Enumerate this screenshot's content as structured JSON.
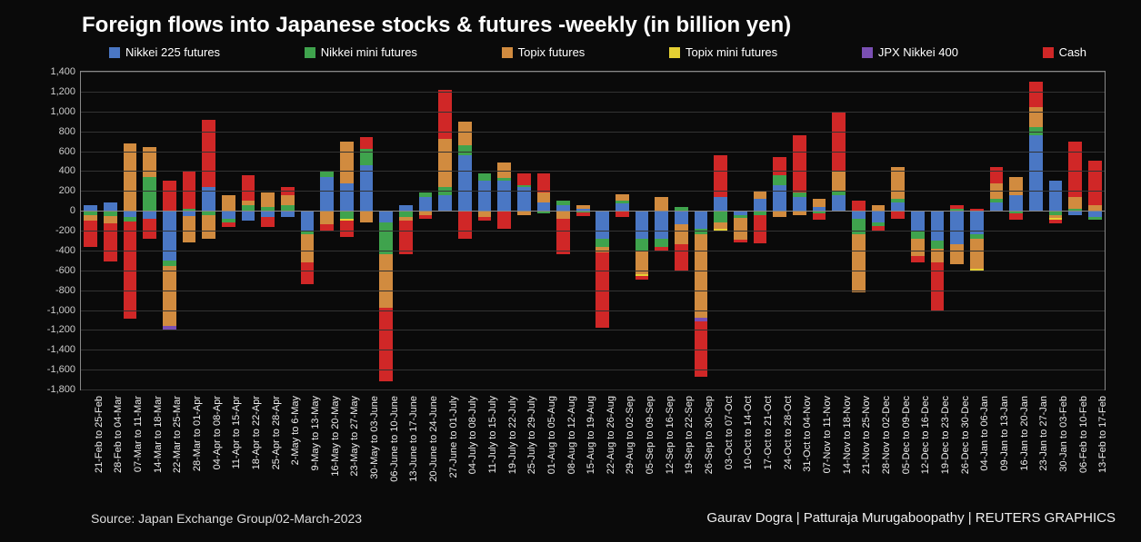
{
  "title": "Foreign flows into Japanese stocks & futures -weekly (in billion yen)",
  "source": "Source: Japan Exchange Group/02-March-2023",
  "credit": "Gaurav Dogra | Patturaja Murugaboopathy | REUTERS GRAPHICS",
  "chart": {
    "type": "stacked-bar",
    "background": "#0a0a0a",
    "border_color": "#888888",
    "grid_color": "#333333",
    "text_color": "#eeeeee",
    "ylim": [
      -1800,
      1400
    ],
    "ytick_step": 200,
    "bar_width_ratio": 0.68,
    "legend": [
      {
        "key": "nikkei225",
        "label": "Nikkei 225 futures",
        "color": "#4a77c4"
      },
      {
        "key": "nikkeimini",
        "label": "Nikkei mini futures",
        "color": "#3fa34d"
      },
      {
        "key": "topix",
        "label": "Topix futures",
        "color": "#d18b3f"
      },
      {
        "key": "topixmini",
        "label": "Topix mini futures",
        "color": "#e5d033"
      },
      {
        "key": "jpx400",
        "label": "JPX Nikkei 400",
        "color": "#7a4fb3"
      },
      {
        "key": "cash",
        "label": "Cash",
        "color": "#d02727"
      }
    ],
    "categories": [
      "21-Feb to 25-Feb",
      "28-Feb to 04-Mar",
      "07-Mar to 11-Mar",
      "14-Mar to 18-Mar",
      "22-Mar to 25-Mar",
      "28-Mar to 01-Apr",
      "04-Apr to 08-Apr",
      "11-Apr to 15-Apr",
      "18-Apr to 22-Apr",
      "25-Apr to 28-Apr",
      "2-May to 6-May",
      "9-May to 13-May",
      "16-May to 20-May",
      "23-May to 27-May",
      "30-May to 03-June",
      "06-June to 10-June",
      "13-June to 17-June",
      "20-June to 24-June",
      "27-June to 01-July",
      "04-July to 08-July",
      "11-July to 15-July",
      "19-July to 22-July",
      "25-July to 29-July",
      "01-Aug to 05-Aug",
      "08-Aug to 12-Aug",
      "15-Aug to 19-Aug",
      "22-Aug to 26-Aug",
      "29-Aug to 02-Sep",
      "05-Sep to 09-Sep",
      "12-Sep to 16-Sep",
      "19-Sep to 22-Sep",
      "26-Sep to 30-Sep",
      "03-Oct to 07-Oct",
      "10-Oct to 14-Oct",
      "17-Oct to 21-Oct",
      "24-Oct to 28-Oct",
      "31-Oct to 04-Nov",
      "07-Nov to 11-Nov",
      "14-Nov to 18-Nov",
      "21-Nov to 25-Nov",
      "28-Nov to 02-Dec",
      "05-Dec to 09-Dec",
      "12-Dec to 16-Dec",
      "19-Dec to 23-Dec",
      "26-Dec to 30-Dec",
      "04-Jan to 06-Jan",
      "09-Jan to 13-Jan",
      "16-Jan to 20-Jan",
      "23-Jan to 27-Jan",
      "30-Jan to 03-Feb",
      "06-Feb to 10-Feb",
      "13-Feb to 17-Feb"
    ],
    "data": [
      {
        "nikkei225": 60,
        "nikkeimini": -40,
        "topix": -60,
        "topixmini": 0,
        "jpx400": 0,
        "cash": -260
      },
      {
        "nikkei225": 80,
        "nikkeimini": -50,
        "topix": -80,
        "topixmini": 0,
        "jpx400": 0,
        "cash": -380
      },
      {
        "nikkei225": -60,
        "nikkeimini": -50,
        "topix": 680,
        "topixmini": 0,
        "jpx400": 0,
        "cash": -980
      },
      {
        "nikkei225": -80,
        "nikkeimini": 340,
        "topix": 300,
        "topixmini": 0,
        "jpx400": 0,
        "cash": -200
      },
      {
        "nikkei225": -500,
        "nikkeimini": -60,
        "topix": -600,
        "topixmini": 0,
        "jpx400": -40,
        "cash": 300
      },
      {
        "nikkei225": -50,
        "nikkeimini": 20,
        "topix": -270,
        "topixmini": 0,
        "jpx400": 0,
        "cash": 380
      },
      {
        "nikkei225": 240,
        "nikkeimini": -40,
        "topix": -240,
        "topixmini": 0,
        "jpx400": 0,
        "cash": 680
      },
      {
        "nikkei225": -80,
        "nikkeimini": -40,
        "topix": 160,
        "topixmini": 0,
        "jpx400": 0,
        "cash": -40
      },
      {
        "nikkei225": -100,
        "nikkeimini": 60,
        "topix": 40,
        "topixmini": 0,
        "jpx400": 0,
        "cash": 260
      },
      {
        "nikkei225": -60,
        "nikkeimini": 40,
        "topix": 140,
        "topixmini": 0,
        "jpx400": 0,
        "cash": -100
      },
      {
        "nikkei225": -60,
        "nikkeimini": 60,
        "topix": 100,
        "topixmini": 0,
        "jpx400": 0,
        "cash": 80
      },
      {
        "nikkei225": -200,
        "nikkeimini": -40,
        "topix": -280,
        "topixmini": 0,
        "jpx400": 0,
        "cash": -220
      },
      {
        "nikkei225": 340,
        "nikkeimini": 60,
        "topix": -140,
        "topixmini": 0,
        "jpx400": 0,
        "cash": -60
      },
      {
        "nikkei225": 280,
        "nikkeimini": -80,
        "topix": 420,
        "topixmini": -20,
        "jpx400": 0,
        "cash": -160
      },
      {
        "nikkei225": 460,
        "nikkeimini": 160,
        "topix": -120,
        "topixmini": 0,
        "jpx400": 0,
        "cash": 120
      },
      {
        "nikkei225": -120,
        "nikkeimini": -320,
        "topix": -540,
        "topixmini": 0,
        "jpx400": 0,
        "cash": -740
      },
      {
        "nikkei225": 60,
        "nikkeimini": -60,
        "topix": -40,
        "topixmini": 0,
        "jpx400": 0,
        "cash": -340
      },
      {
        "nikkei225": 140,
        "nikkeimini": 40,
        "topix": -40,
        "topixmini": 0,
        "jpx400": 0,
        "cash": -40
      },
      {
        "nikkei225": 160,
        "nikkeimini": 80,
        "topix": 480,
        "topixmini": 0,
        "jpx400": 0,
        "cash": 500
      },
      {
        "nikkei225": 560,
        "nikkeimini": 100,
        "topix": 240,
        "topixmini": 0,
        "jpx400": 0,
        "cash": -280
      },
      {
        "nikkei225": 300,
        "nikkeimini": 80,
        "topix": -60,
        "topixmini": 0,
        "jpx400": 0,
        "cash": -40
      },
      {
        "nikkei225": 300,
        "nikkeimini": 30,
        "topix": 160,
        "topixmini": 0,
        "jpx400": 0,
        "cash": -180
      },
      {
        "nikkei225": 240,
        "nikkeimini": 20,
        "topix": -40,
        "topixmini": 0,
        "jpx400": 0,
        "cash": 120
      },
      {
        "nikkei225": 80,
        "nikkeimini": -30,
        "topix": 100,
        "topixmini": 0,
        "jpx400": 0,
        "cash": 200
      },
      {
        "nikkei225": 60,
        "nikkeimini": 40,
        "topix": -80,
        "topixmini": 0,
        "jpx400": 0,
        "cash": -360
      },
      {
        "nikkei225": 20,
        "nikkeimini": -20,
        "topix": 40,
        "topixmini": 0,
        "jpx400": 0,
        "cash": -30
      },
      {
        "nikkei225": -280,
        "nikkeimini": -80,
        "topix": -60,
        "topixmini": 0,
        "jpx400": 0,
        "cash": -760
      },
      {
        "nikkei225": 70,
        "nikkeimini": 30,
        "topix": 70,
        "topixmini": 0,
        "jpx400": 0,
        "cash": -60
      },
      {
        "nikkei225": -280,
        "nikkeimini": -120,
        "topix": -240,
        "topixmini": -20,
        "jpx400": 0,
        "cash": -30
      },
      {
        "nikkei225": -280,
        "nikkeimini": -80,
        "topix": 140,
        "topixmini": 0,
        "jpx400": 0,
        "cash": -40
      },
      {
        "nikkei225": -140,
        "nikkeimini": 40,
        "topix": -200,
        "topixmini": 0,
        "jpx400": 0,
        "cash": -260
      },
      {
        "nikkei225": -180,
        "nikkeimini": -60,
        "topix": -840,
        "topixmini": 0,
        "jpx400": -30,
        "cash": -560
      },
      {
        "nikkei225": 140,
        "nikkeimini": -120,
        "topix": -60,
        "topixmini": -20,
        "jpx400": 0,
        "cash": 420
      },
      {
        "nikkei225": -40,
        "nikkeimini": -30,
        "topix": -220,
        "topixmini": 0,
        "jpx400": 0,
        "cash": -30
      },
      {
        "nikkei225": 120,
        "nikkeimini": -40,
        "topix": 80,
        "topixmini": 0,
        "jpx400": 0,
        "cash": -290
      },
      {
        "nikkei225": 260,
        "nikkeimini": 100,
        "topix": -60,
        "topixmini": 0,
        "jpx400": 0,
        "cash": 180
      },
      {
        "nikkei225": 140,
        "nikkeimini": 40,
        "topix": -40,
        "topixmini": 0,
        "jpx400": 0,
        "cash": 580
      },
      {
        "nikkei225": 40,
        "nikkeimini": -30,
        "topix": 80,
        "topixmini": 0,
        "jpx400": 0,
        "cash": -60
      },
      {
        "nikkei225": 160,
        "nikkeimini": 40,
        "topix": 200,
        "topixmini": 0,
        "jpx400": 0,
        "cash": 600
      },
      {
        "nikkei225": -80,
        "nikkeimini": -160,
        "topix": -580,
        "topixmini": 0,
        "jpx400": 0,
        "cash": 100
      },
      {
        "nikkei225": -120,
        "nikkeimini": -30,
        "topix": 60,
        "topixmini": 0,
        "jpx400": 0,
        "cash": -60
      },
      {
        "nikkei225": 80,
        "nikkeimini": 40,
        "topix": 320,
        "topixmini": 0,
        "jpx400": 0,
        "cash": -80
      },
      {
        "nikkei225": -200,
        "nikkeimini": -80,
        "topix": -180,
        "topixmini": 0,
        "jpx400": 0,
        "cash": -60
      },
      {
        "nikkei225": -300,
        "nikkeimini": -80,
        "topix": -140,
        "topixmini": 0,
        "jpx400": 0,
        "cash": -480
      },
      {
        "nikkei225": -340,
        "nikkeimini": 20,
        "topix": -200,
        "topixmini": 0,
        "jpx400": 0,
        "cash": 40
      },
      {
        "nikkei225": -240,
        "nikkeimini": -40,
        "topix": -300,
        "topixmini": -20,
        "jpx400": 0,
        "cash": 20
      },
      {
        "nikkei225": 80,
        "nikkeimini": 40,
        "topix": 160,
        "topixmini": 0,
        "jpx400": 0,
        "cash": 160
      },
      {
        "nikkei225": 160,
        "nikkeimini": -30,
        "topix": 180,
        "topixmini": 0,
        "jpx400": 0,
        "cash": -60
      },
      {
        "nikkei225": 760,
        "nikkeimini": 80,
        "topix": 200,
        "topixmini": 0,
        "jpx400": 0,
        "cash": 260
      },
      {
        "nikkei225": 300,
        "nikkeimini": -40,
        "topix": -30,
        "topixmini": -20,
        "jpx400": 0,
        "cash": -40
      },
      {
        "nikkei225": -40,
        "nikkeimini": 20,
        "topix": 120,
        "topixmini": 0,
        "jpx400": 0,
        "cash": 560
      },
      {
        "nikkei225": -60,
        "nikkeimini": -30,
        "topix": 60,
        "topixmini": 0,
        "jpx400": 0,
        "cash": 440
      }
    ]
  }
}
